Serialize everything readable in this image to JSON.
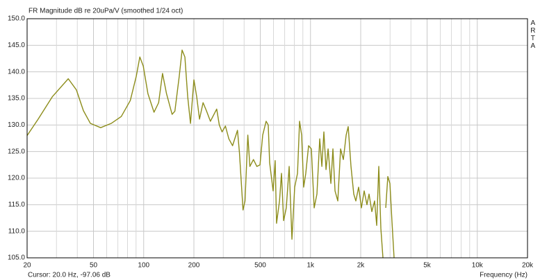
{
  "chart_data": {
    "type": "line",
    "title": "FR Magnitude dB re 20uPa/V (smoothed 1/24 oct)",
    "side_label": "ARTA",
    "status": "Cursor: 20.0 Hz, -97.06 dB",
    "x_label": "Frequency (Hz)",
    "xscale": "log",
    "grid": true,
    "color": "#8c8c1a",
    "xlim": [
      20,
      20000
    ],
    "xticks": [
      20,
      50,
      100,
      200,
      500,
      {
        "value": 1000,
        "label": "1k"
      },
      {
        "value": 2000,
        "label": "2k"
      },
      {
        "value": 5000,
        "label": "5k"
      },
      {
        "value": 10000,
        "label": "10k"
      },
      {
        "value": 20000,
        "label": "20k"
      }
    ],
    "xgrid_minor": [
      30,
      40,
      60,
      70,
      80,
      90,
      300,
      400,
      600,
      700,
      800,
      900,
      3000,
      4000,
      6000,
      7000,
      8000,
      9000
    ],
    "ylim": [
      105,
      150
    ],
    "yticks": [
      {
        "value": 105,
        "label": "105.0"
      },
      {
        "value": 110,
        "label": "110.0"
      },
      {
        "value": 115,
        "label": "115.0"
      },
      {
        "value": 120,
        "label": "120.0"
      },
      {
        "value": 125,
        "label": "125.0"
      },
      {
        "value": 130,
        "label": "130.0"
      },
      {
        "value": 135,
        "label": "135.0"
      },
      {
        "value": 140,
        "label": "140.0"
      },
      {
        "value": 145,
        "label": "145.0"
      },
      {
        "value": 150,
        "label": "150.0"
      }
    ],
    "x": [
      20,
      23.3,
      28.3,
      35.3,
      39.5,
      43.5,
      47.9,
      55.2,
      63.9,
      73.4,
      83.1,
      90.3,
      94.8,
      99.4,
      106,
      115.3,
      122.9,
      129.7,
      137,
      148,
      153.8,
      163.4,
      169.9,
      176.6,
      183.6,
      190.8,
      200,
      207.9,
      216.1,
      227,
      238.3,
      251.2,
      274,
      284,
      295,
      309,
      324,
      341,
      365,
      375,
      394,
      405,
      421,
      433,
      455,
      477,
      498,
      517,
      542,
      558,
      569,
      597,
      614,
      626,
      652,
      670,
      690,
      716,
      745,
      774,
      804,
      836,
      860,
      885,
      910,
      937,
      974,
      1012,
      1052,
      1093,
      1136,
      1170,
      1203,
      1239,
      1275,
      1325,
      1363,
      1403,
      1458,
      1515,
      1574,
      1636,
      1683,
      1749,
      1817,
      1870,
      1943,
      2019,
      2098,
      2180,
      2244,
      2332,
      2423,
      2494,
      2567,
      2642,
      2719,
      2760,
      2826,
      2908,
      2993,
      3080,
      3170
    ],
    "values": [
      128.0,
      131.1,
      135.3,
      138.7,
      136.6,
      132.7,
      130.3,
      129.5,
      130.3,
      131.6,
      134.6,
      139.2,
      142.8,
      141.1,
      135.9,
      132.4,
      134.2,
      139.7,
      135.9,
      132.0,
      132.6,
      139.2,
      144.1,
      142.8,
      135.3,
      130.3,
      138.5,
      135.3,
      131.1,
      134.2,
      132.6,
      130.7,
      133.0,
      130.0,
      128.7,
      129.8,
      127.4,
      126.1,
      129.0,
      124.8,
      114.0,
      115.7,
      128.1,
      122.2,
      123.5,
      122.2,
      122.5,
      128.1,
      130.7,
      130.0,
      122.9,
      117.6,
      123.3,
      111.5,
      115.7,
      120.9,
      112.0,
      114.4,
      122.2,
      108.5,
      118.3,
      120.9,
      130.7,
      128.1,
      118.3,
      120.9,
      126.1,
      125.5,
      114.4,
      117.0,
      127.4,
      122.2,
      128.7,
      121.6,
      125.5,
      119.0,
      125.5,
      117.6,
      115.7,
      125.5,
      123.5,
      128.1,
      129.7,
      122.2,
      117.0,
      115.7,
      118.3,
      114.4,
      117.6,
      115.0,
      117.0,
      113.7,
      115.7,
      111.1,
      122.2,
      110.5,
      105.0,
      null,
      114.4,
      120.3,
      119.0,
      111.8,
      105.0
    ]
  }
}
